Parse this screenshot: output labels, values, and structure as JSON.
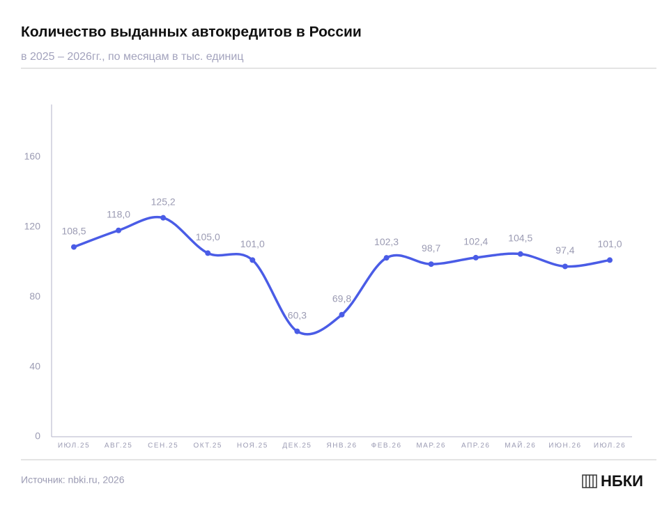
{
  "chart_data": {
    "type": "line",
    "title": "Количество выданных автокредитов в России",
    "subtitle": "в 2025 – 2026гг., по месяцам в тыс. единиц",
    "categories": [
      "ИЮЛ.25",
      "АВГ.25",
      "СЕН.25",
      "ОКТ.25",
      "НОЯ.25",
      "ДЕК.25",
      "ЯНВ.26",
      "ФЕВ.26",
      "МАР.26",
      "АПР.26",
      "МАЙ.26",
      "ИЮН.26",
      "ИЮЛ.26"
    ],
    "values": [
      108.5,
      118.0,
      125.2,
      105.0,
      101.0,
      60.3,
      69.8,
      102.3,
      98.7,
      102.4,
      104.5,
      97.4,
      101.0
    ],
    "value_labels": [
      "108,5",
      "118,0",
      "125,2",
      "105,0",
      "101,0",
      "60,3",
      "69,8",
      "102,3",
      "98,7",
      "102,4",
      "104,5",
      "97,4",
      "101,0"
    ],
    "color": "#4a5ce6",
    "ylim": [
      0,
      190
    ],
    "yticks": [
      0,
      40,
      80,
      120,
      160
    ],
    "grid": false,
    "source": "Источник: nbki.ru, 2026",
    "logo": "НБКИ"
  }
}
